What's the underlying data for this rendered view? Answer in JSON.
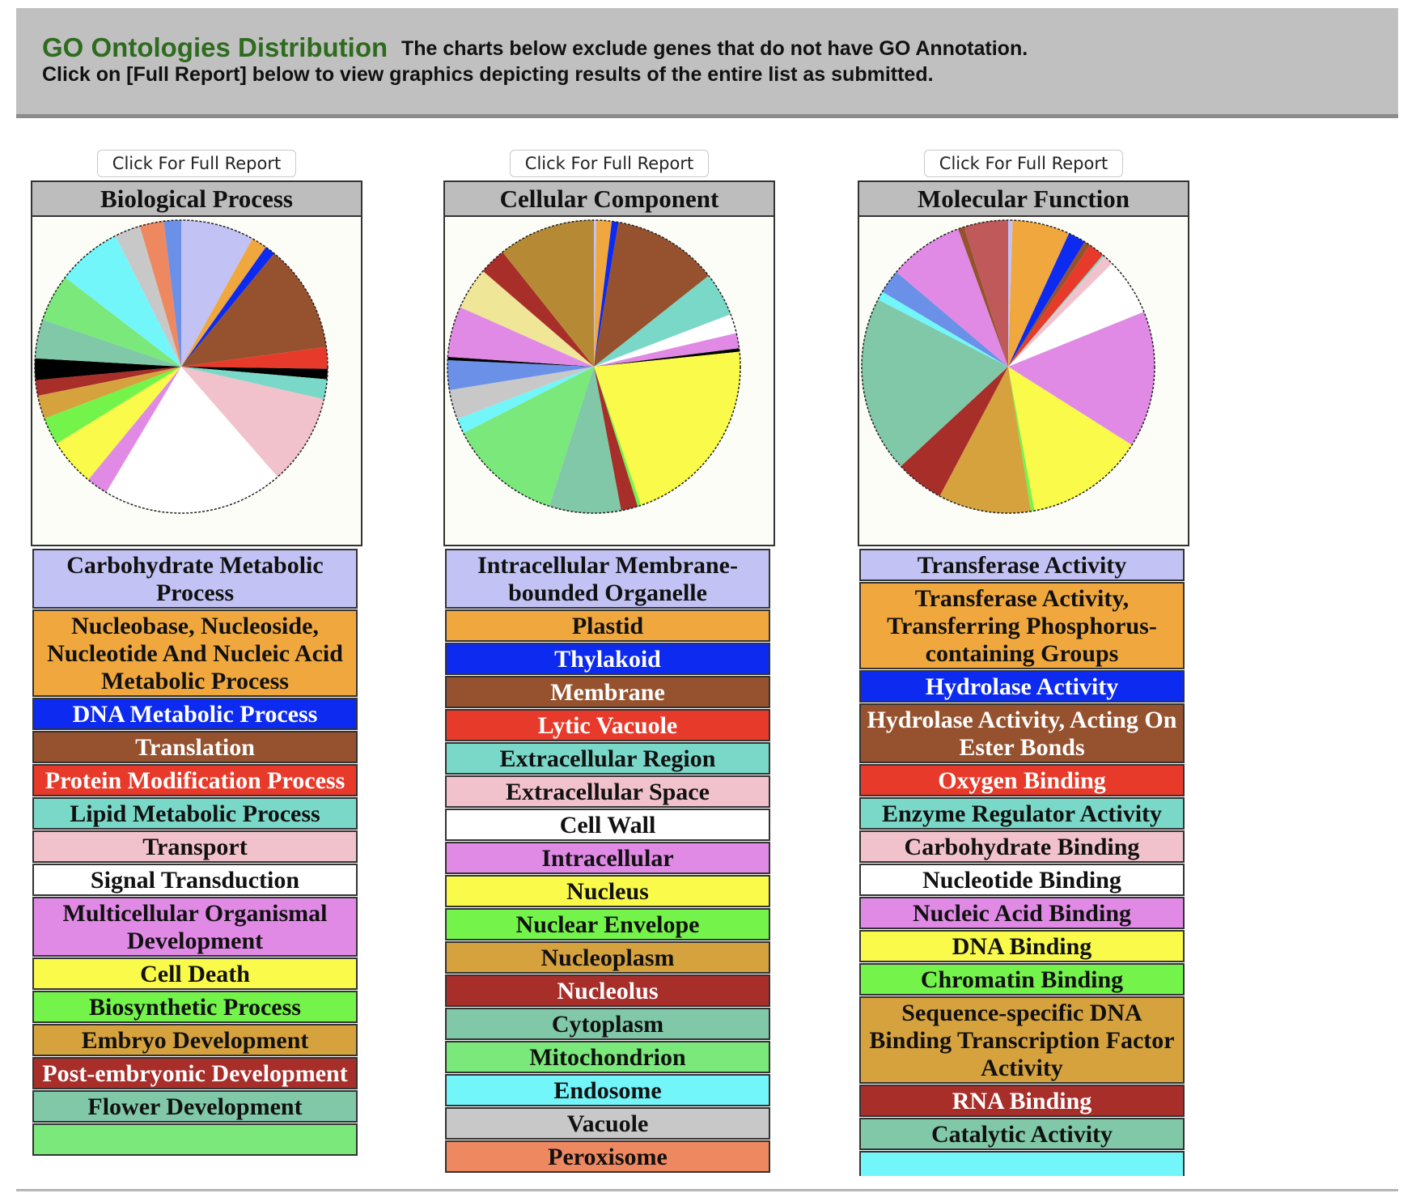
{
  "header": {
    "title": "GO Ontologies Distribution",
    "line1": "The charts below exclude genes that do not have GO Annotation.",
    "line2": "Click on [Full Report] below to view graphics depicting results of the entire list as submitted."
  },
  "columns": [
    {
      "button_label": "Click For Full Report",
      "title": "Biological Process",
      "slices": [
        {
          "label": "Carbohydrate Metabolic Process",
          "color": "#c2c2f4",
          "value": 8.5
        },
        {
          "label": "Nucleobase, Nucleoside, Nucleotide And Nucleic Acid Metabolic Process",
          "color": "#f0a83e",
          "value": 1.8
        },
        {
          "label": "DNA Metabolic Process",
          "color": "#0d2bf0",
          "value": 1.2
        },
        {
          "label": "Translation",
          "color": "#96522e",
          "value": 12.5
        },
        {
          "label": "Protein Modification Process",
          "color": "#e83a2a",
          "value": 2.5
        },
        {
          "label": "",
          "color": "#000000",
          "value": 1.2
        },
        {
          "label": "Lipid Metabolic Process",
          "color": "#7ad8c8",
          "value": 2.3
        },
        {
          "label": "Transport",
          "color": "#f2c2cc",
          "value": 10.5
        },
        {
          "label": "Signal Transduction",
          "color": "#ffffff",
          "value": 21
        },
        {
          "label": "Multicellular Organismal Development",
          "color": "#e08ae6",
          "value": 2.5
        },
        {
          "label": "Cell Death",
          "color": "#fafa4a",
          "value": 5.5
        },
        {
          "label": "Biosynthetic Process",
          "color": "#74f44a",
          "value": 3.2
        },
        {
          "label": "Embryo Development",
          "color": "#d6a23e",
          "value": 2.7
        },
        {
          "label": "Post-embryonic Development",
          "color": "#a82e2a",
          "value": 1.8
        },
        {
          "label": "",
          "color": "#000000",
          "value": 2.5
        },
        {
          "label": "Flower Development",
          "color": "#80c8a8",
          "value": 4.5
        },
        {
          "label": "",
          "color": "#7ae87a",
          "value": 5.5
        },
        {
          "label": "",
          "color": "#72f6fa",
          "value": 7.5
        },
        {
          "label": "",
          "color": "#c8c8c8",
          "value": 3.0
        },
        {
          "label": "",
          "color": "#ee8860",
          "value": 2.8
        },
        {
          "label": "",
          "color": "#6a90e8",
          "value": 2.0
        }
      ]
    },
    {
      "button_label": "Click For Full Report",
      "title": "Cellular Component",
      "slices": [
        {
          "label": "Intracellular Membrane-bounded Organelle",
          "color": "#c2c2f4",
          "value": 0.3
        },
        {
          "label": "Plastid",
          "color": "#f0a83e",
          "value": 1.8
        },
        {
          "label": "Thylakoid",
          "color": "#0d2bf0",
          "value": 0.8
        },
        {
          "label": "Membrane",
          "color": "#96522e",
          "value": 12.5
        },
        {
          "label": "Lytic Vacuole",
          "color": "#e83a2a",
          "value": 0.0
        },
        {
          "label": "Extracellular Region",
          "color": "#7ad8c8",
          "value": 5.2
        },
        {
          "label": "Extracellular Space",
          "color": "#f2c2cc",
          "value": 0.0
        },
        {
          "label": "Cell Wall",
          "color": "#ffffff",
          "value": 2.3
        },
        {
          "label": "Intracellular",
          "color": "#e08ae6",
          "value": 1.8
        },
        {
          "label": "",
          "color": "#000000",
          "value": 0.4
        },
        {
          "label": "Nucleus",
          "color": "#fafa4a",
          "value": 23
        },
        {
          "label": "Nuclear Envelope",
          "color": "#74f44a",
          "value": 0.4
        },
        {
          "label": "Nucleolus",
          "color": "#a82e2a",
          "value": 2.0
        },
        {
          "label": "Cytoplasm",
          "color": "#80c8a8",
          "value": 8.5
        },
        {
          "label": "Mitochondrion",
          "color": "#7ae87a",
          "value": 13.5
        },
        {
          "label": "Endosome",
          "color": "#72f6fa",
          "value": 1.8
        },
        {
          "label": "Vacuole",
          "color": "#c8c8c8",
          "value": 3.5
        },
        {
          "label": "",
          "color": "#6a90e8",
          "value": 3.5
        },
        {
          "label": "",
          "color": "#000000",
          "value": 0.4
        },
        {
          "label": "",
          "color": "#e08ae6",
          "value": 6.0
        },
        {
          "label": "",
          "color": "#f0e698",
          "value": 5.0
        },
        {
          "label": "",
          "color": "#a82e2a",
          "value": 3.2
        },
        {
          "label": "Nucleoplasm",
          "color": "#b68a34",
          "value": 11.5
        }
      ],
      "extra_legend": [
        "Peroxisome"
      ]
    },
    {
      "button_label": "Click For Full Report",
      "title": "Molecular Function",
      "slices": [
        {
          "label": "Transferase Activity",
          "color": "#c2c2f4",
          "value": 0.5
        },
        {
          "label": "Transferase Activity, Transferring Phosphorus-containing Groups",
          "color": "#f0a83e",
          "value": 6.5
        },
        {
          "label": "Hydrolase Activity",
          "color": "#0d2bf0",
          "value": 2.0
        },
        {
          "label": "Hydrolase Activity, Acting On Ester Bonds",
          "color": "#96522e",
          "value": 0.7
        },
        {
          "label": "Oxygen Binding",
          "color": "#e83a2a",
          "value": 1.8
        },
        {
          "label": "Enzyme Regulator Activity",
          "color": "#7ad8c8",
          "value": 0.2
        },
        {
          "label": "Carbohydrate Binding",
          "color": "#f2c2cc",
          "value": 1.2
        },
        {
          "label": "Nucleotide Binding",
          "color": "#ffffff",
          "value": 6.5
        },
        {
          "label": "Nucleic Acid Binding",
          "color": "#e08ae6",
          "value": 15.5
        },
        {
          "label": "DNA Binding",
          "color": "#fafa4a",
          "value": 13.5
        },
        {
          "label": "Chromatin Binding",
          "color": "#74f44a",
          "value": 0.4
        },
        {
          "label": "Sequence-specific DNA Binding Transcription Factor Activity",
          "color": "#d6a23e",
          "value": 10.5
        },
        {
          "label": "RNA Binding",
          "color": "#a82e2a",
          "value": 5.5
        },
        {
          "label": "Catalytic Activity",
          "color": "#80c8a8",
          "value": 20
        },
        {
          "label": "",
          "color": "#72f6fa",
          "value": 1.0
        },
        {
          "label": "",
          "color": "#6a90e8",
          "value": 2.7
        },
        {
          "label": "",
          "color": "#e08ae6",
          "value": 8.5
        },
        {
          "label": "",
          "color": "#96522e",
          "value": 0.7
        },
        {
          "label": "",
          "color": "#c05a5a",
          "value": 5.0
        }
      ]
    }
  ],
  "legends": [
    [
      {
        "text": "Carbohydrate Metabolic Process",
        "bg": "#c2c2f4",
        "fg": "#111111"
      },
      {
        "text": "Nucleobase, Nucleoside, Nucleotide And Nucleic Acid Metabolic Process",
        "bg": "#f0a83e",
        "fg": "#111111"
      },
      {
        "text": "DNA Metabolic Process",
        "bg": "#0d2bf0",
        "fg": "#ffffff"
      },
      {
        "text": "Translation",
        "bg": "#96522e",
        "fg": "#ffffff"
      },
      {
        "text": "Protein Modification Process",
        "bg": "#e83a2a",
        "fg": "#ffffff"
      },
      {
        "text": "Lipid Metabolic Process",
        "bg": "#7ad8c8",
        "fg": "#111111"
      },
      {
        "text": "Transport",
        "bg": "#f2c2cc",
        "fg": "#111111"
      },
      {
        "text": "Signal Transduction",
        "bg": "#ffffff",
        "fg": "#111111"
      },
      {
        "text": "Multicellular Organismal Development",
        "bg": "#e08ae6",
        "fg": "#111111"
      },
      {
        "text": "Cell Death",
        "bg": "#fafa4a",
        "fg": "#111111"
      },
      {
        "text": "Biosynthetic Process",
        "bg": "#74f44a",
        "fg": "#111111"
      },
      {
        "text": "Embryo Development",
        "bg": "#d6a23e",
        "fg": "#111111"
      },
      {
        "text": "Post-embryonic Development",
        "bg": "#a82e2a",
        "fg": "#ffffff"
      },
      {
        "text": "Flower Development",
        "bg": "#80c8a8",
        "fg": "#111111"
      },
      {
        "text": "",
        "bg": "#7ae87a",
        "fg": "#111111"
      }
    ],
    [
      {
        "text": "Intracellular Membrane-bounded Organelle",
        "bg": "#c2c2f4",
        "fg": "#111111"
      },
      {
        "text": "Plastid",
        "bg": "#f0a83e",
        "fg": "#111111"
      },
      {
        "text": "Thylakoid",
        "bg": "#0d2bf0",
        "fg": "#ffffff"
      },
      {
        "text": "Membrane",
        "bg": "#96522e",
        "fg": "#ffffff"
      },
      {
        "text": "Lytic Vacuole",
        "bg": "#e83a2a",
        "fg": "#ffffff"
      },
      {
        "text": "Extracellular Region",
        "bg": "#7ad8c8",
        "fg": "#111111"
      },
      {
        "text": "Extracellular Space",
        "bg": "#f2c2cc",
        "fg": "#111111"
      },
      {
        "text": "Cell Wall",
        "bg": "#ffffff",
        "fg": "#111111"
      },
      {
        "text": "Intracellular",
        "bg": "#e08ae6",
        "fg": "#111111"
      },
      {
        "text": "Nucleus",
        "bg": "#fafa4a",
        "fg": "#111111"
      },
      {
        "text": "Nuclear Envelope",
        "bg": "#74f44a",
        "fg": "#111111"
      },
      {
        "text": "Nucleoplasm",
        "bg": "#d6a23e",
        "fg": "#111111"
      },
      {
        "text": "Nucleolus",
        "bg": "#a82e2a",
        "fg": "#ffffff"
      },
      {
        "text": "Cytoplasm",
        "bg": "#80c8a8",
        "fg": "#111111"
      },
      {
        "text": "Mitochondrion",
        "bg": "#7ae87a",
        "fg": "#111111"
      },
      {
        "text": "Endosome",
        "bg": "#72f6fa",
        "fg": "#111111"
      },
      {
        "text": "Vacuole",
        "bg": "#c8c8c8",
        "fg": "#111111"
      },
      {
        "text": "Peroxisome",
        "bg": "#ee8860",
        "fg": "#111111"
      }
    ],
    [
      {
        "text": "Transferase Activity",
        "bg": "#c2c2f4",
        "fg": "#111111"
      },
      {
        "text": "Transferase Activity, Transferring Phosphorus-containing Groups",
        "bg": "#f0a83e",
        "fg": "#111111"
      },
      {
        "text": "Hydrolase Activity",
        "bg": "#0d2bf0",
        "fg": "#ffffff"
      },
      {
        "text": "Hydrolase Activity, Acting On Ester Bonds",
        "bg": "#96522e",
        "fg": "#ffffff"
      },
      {
        "text": "Oxygen Binding",
        "bg": "#e83a2a",
        "fg": "#ffffff"
      },
      {
        "text": "Enzyme Regulator Activity",
        "bg": "#7ad8c8",
        "fg": "#111111"
      },
      {
        "text": "Carbohydrate Binding",
        "bg": "#f2c2cc",
        "fg": "#111111"
      },
      {
        "text": "Nucleotide Binding",
        "bg": "#ffffff",
        "fg": "#111111"
      },
      {
        "text": "Nucleic Acid Binding",
        "bg": "#e08ae6",
        "fg": "#111111"
      },
      {
        "text": "DNA Binding",
        "bg": "#fafa4a",
        "fg": "#111111"
      },
      {
        "text": "Chromatin Binding",
        "bg": "#74f44a",
        "fg": "#111111"
      },
      {
        "text": "Sequence-specific DNA Binding Transcription Factor Activity",
        "bg": "#d6a23e",
        "fg": "#111111"
      },
      {
        "text": "RNA Binding",
        "bg": "#a82e2a",
        "fg": "#ffffff"
      },
      {
        "text": "Catalytic Activity",
        "bg": "#80c8a8",
        "fg": "#111111"
      },
      {
        "text": "",
        "bg": "#72f6fa",
        "fg": "#111111"
      }
    ]
  ]
}
